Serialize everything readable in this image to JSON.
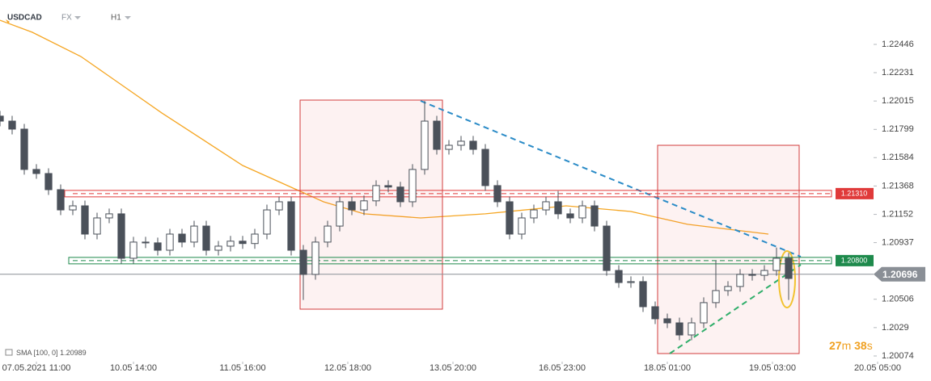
{
  "chart_data": {
    "type": "candlestick",
    "symbol": "USDCAD",
    "market": "FX",
    "interval": "H1",
    "x": [
      0,
      3,
      6,
      9,
      12,
      15,
      18,
      21,
      24,
      27,
      30,
      33,
      36,
      39,
      42,
      45,
      48,
      51,
      54,
      57,
      60,
      63,
      66,
      69,
      72,
      75,
      78,
      81,
      84,
      87,
      90,
      93,
      96,
      99,
      102,
      105,
      108,
      111,
      114,
      117,
      120,
      123,
      126,
      129,
      132,
      135,
      138,
      141,
      144,
      147,
      150,
      153,
      156,
      159,
      162,
      165,
      168,
      171,
      174,
      177,
      180,
      183,
      186,
      189,
      192,
      195
    ],
    "open": [
      1.219,
      1.21862,
      1.21801,
      1.21494,
      1.21463,
      1.2134,
      1.21186,
      1.21217,
      1.21002,
      1.21125,
      1.21156,
      1.20818,
      1.20941,
      1.20935,
      1.20879,
      1.21002,
      1.20941,
      1.21063,
      1.20879,
      1.2091,
      1.20948,
      1.2093,
      1.21002,
      1.21186,
      1.21248,
      1.20879,
      1.20695,
      1.20941,
      1.21063,
      1.21248,
      1.21186,
      1.21255,
      1.21371,
      1.2136,
      1.21248,
      1.21494,
      1.21862,
      1.21647,
      1.21678,
      1.21709,
      1.21647,
      1.21371,
      1.21248,
      1.21002,
      1.21125,
      1.21186,
      1.21248,
      1.21156,
      1.21125,
      1.21217,
      1.21063,
      1.20725,
      1.20633,
      1.2064,
      1.20449,
      1.20357,
      1.20326,
      1.20234,
      1.20326,
      1.2048,
      1.20572,
      1.20603,
      1.20695,
      1.20688,
      1.20725,
      1.20818
    ],
    "high": [
      1.2194,
      1.21902,
      1.21841,
      1.21534,
      1.21503,
      1.2138,
      1.21257,
      1.21257,
      1.21165,
      1.21196,
      1.21196,
      1.20981,
      1.20981,
      1.20975,
      1.21042,
      1.21042,
      1.21103,
      1.21103,
      1.2095,
      1.20988,
      1.20988,
      1.21042,
      1.21226,
      1.21288,
      1.21288,
      1.20919,
      1.20981,
      1.21103,
      1.21288,
      1.21288,
      1.21295,
      1.21411,
      1.21411,
      1.214,
      1.21534,
      1.22015,
      1.21902,
      1.21718,
      1.21749,
      1.21749,
      1.21687,
      1.21411,
      1.21288,
      1.21165,
      1.21226,
      1.21288,
      1.2133,
      1.21196,
      1.21257,
      1.21257,
      1.21103,
      1.20765,
      1.2068,
      1.2068,
      1.20489,
      1.20397,
      1.20366,
      1.20366,
      1.2052,
      1.208,
      1.20643,
      1.20735,
      1.20735,
      1.20765,
      1.209,
      1.20858
    ],
    "low": [
      1.21822,
      1.21761,
      1.21454,
      1.21423,
      1.213,
      1.21146,
      1.21146,
      1.20962,
      1.20962,
      1.21085,
      1.20778,
      1.20778,
      1.20895,
      1.20839,
      1.20839,
      1.20901,
      1.20901,
      1.20839,
      1.20839,
      1.2087,
      1.2089,
      1.2089,
      1.20962,
      1.21146,
      1.20839,
      1.205,
      1.20655,
      1.20901,
      1.21023,
      1.21146,
      1.21146,
      1.21215,
      1.2132,
      1.21208,
      1.21208,
      1.21454,
      1.21607,
      1.21607,
      1.21638,
      1.21607,
      1.21331,
      1.21208,
      1.20962,
      1.20962,
      1.21085,
      1.21146,
      1.21116,
      1.21085,
      1.21085,
      1.21023,
      1.20685,
      1.20593,
      1.20593,
      1.20409,
      1.20317,
      1.20286,
      1.20194,
      1.20194,
      1.20286,
      1.2044,
      1.20532,
      1.20563,
      1.20648,
      1.20648,
      1.20685,
      1.205
    ],
    "close": [
      1.21862,
      1.21801,
      1.21494,
      1.21463,
      1.2134,
      1.21186,
      1.21217,
      1.21002,
      1.21125,
      1.21156,
      1.20818,
      1.20941,
      1.20935,
      1.20879,
      1.21002,
      1.20941,
      1.21063,
      1.20879,
      1.2091,
      1.20948,
      1.2093,
      1.21002,
      1.21186,
      1.21248,
      1.20879,
      1.20695,
      1.20941,
      1.21063,
      1.21248,
      1.21186,
      1.21255,
      1.21371,
      1.2136,
      1.21248,
      1.21494,
      1.21862,
      1.21647,
      1.21678,
      1.21709,
      1.21647,
      1.21371,
      1.21248,
      1.21002,
      1.21125,
      1.21186,
      1.21248,
      1.21156,
      1.21125,
      1.21217,
      1.21063,
      1.20725,
      1.20633,
      1.2064,
      1.20449,
      1.20357,
      1.20326,
      1.20234,
      1.20326,
      1.2048,
      1.20572,
      1.20603,
      1.20695,
      1.20688,
      1.20725,
      1.20818,
      1.20664
    ],
    "up_color": "#ffffff",
    "down_color": "#4b515a",
    "sma": {
      "name": "SMA",
      "params": "[100, 0]",
      "value": 1.20989,
      "color": "#f5a623",
      "x": [
        0,
        8,
        20,
        40,
        60,
        80,
        90,
        104,
        120,
        140,
        156,
        170,
        190
      ],
      "values": [
        1.2263,
        1.22538,
        1.22354,
        1.21924,
        1.21524,
        1.21248,
        1.21156,
        1.21125,
        1.21156,
        1.21217,
        1.21174,
        1.21076,
        1.21002
      ]
    },
    "levels": [
      {
        "value": 1.2131,
        "label": "1.21310",
        "color": "#e03a3a"
      },
      {
        "value": 1.208,
        "label": "1.20800",
        "color": "#1e8a4c"
      }
    ],
    "current_price": 1.20696,
    "countdown": [
      {
        "value": 27,
        "unit": "m"
      },
      {
        "value": 38,
        "unit": "s"
      }
    ],
    "xlim": [
      0,
      230
    ],
    "xticks": [
      {
        "value": 9,
        "label": "07.05.2021 11:00"
      },
      {
        "value": 33,
        "label": "10.05 14:00"
      },
      {
        "value": 60,
        "label": "11.05 16:00"
      },
      {
        "value": 86,
        "label": "12.05 18:00"
      },
      {
        "value": 112,
        "label": "13.05 20:00"
      },
      {
        "value": 139,
        "label": "16.05 23:00"
      },
      {
        "value": 165,
        "label": "18.05 01:00"
      },
      {
        "value": 191,
        "label": "19.05 03:00"
      },
      {
        "value": 217,
        "label": "20.05 05:00"
      }
    ],
    "ylim": [
      1.20031,
      1.22784
    ],
    "yticks": [
      1.22446,
      1.22231,
      1.22015,
      1.21799,
      1.21584,
      1.21368,
      1.21152,
      1.20937,
      1.20506,
      1.2029,
      1.20074
    ],
    "grid": false
  }
}
